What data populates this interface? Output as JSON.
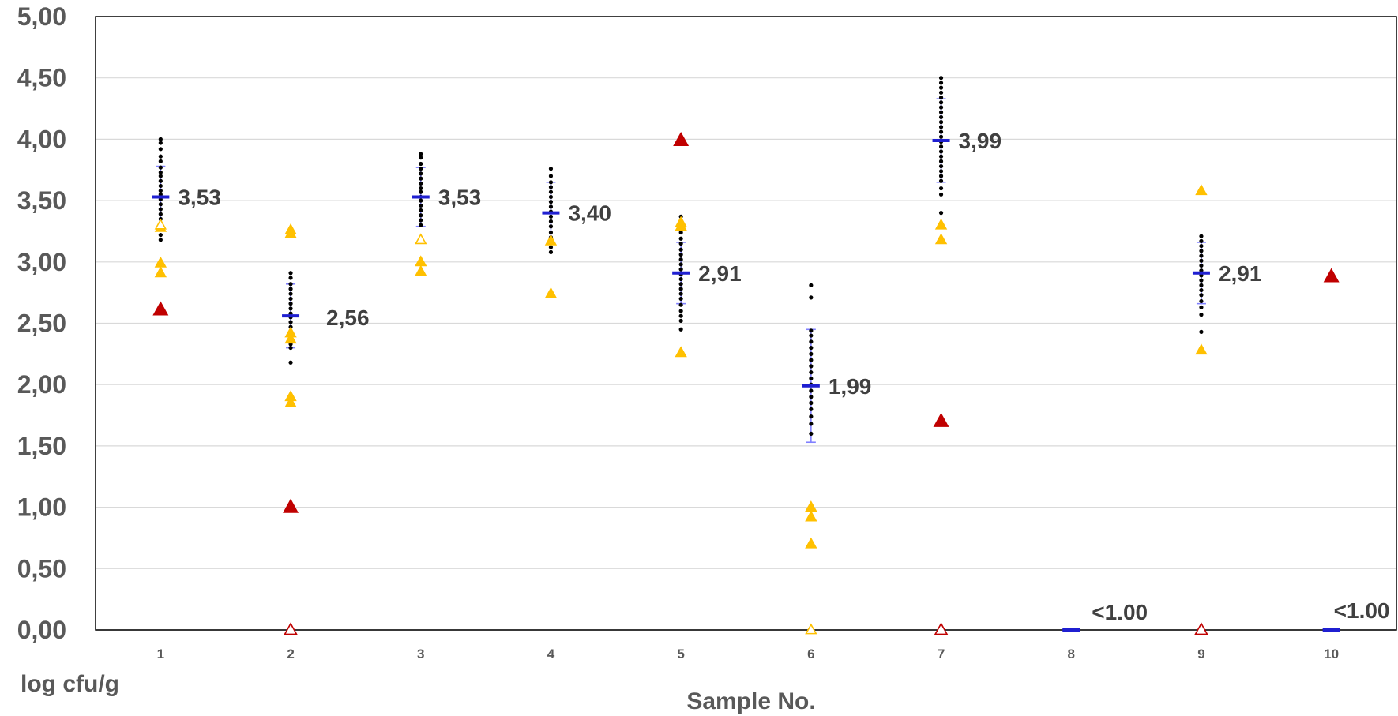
{
  "chart_data": {
    "type": "scatter",
    "title": "",
    "xlabel": "Sample No.",
    "ylabel": "log cfu/g",
    "categories": [
      "1",
      "2",
      "3",
      "4",
      "5",
      "6",
      "7",
      "8",
      "9",
      "10"
    ],
    "ylim": [
      0,
      5
    ],
    "yticks": [
      "0,00",
      "0,50",
      "1,00",
      "1,50",
      "2,00",
      "2,50",
      "3,00",
      "3,50",
      "4,00",
      "4,50",
      "5,00"
    ],
    "grid": true,
    "colors": {
      "results": "#000000",
      "mean": "#1f1fd1",
      "error_bar": "#8080ff",
      "yellow": "#ffc000",
      "red": "#c00000",
      "grid": "#d9d9d9"
    },
    "series": [
      {
        "marker": "dot",
        "points": [
          [
            1,
            4.0
          ],
          [
            1,
            3.97
          ],
          [
            1,
            3.92
          ],
          [
            1,
            3.86
          ],
          [
            1,
            3.82
          ],
          [
            1,
            3.77
          ],
          [
            1,
            3.73
          ],
          [
            1,
            3.7
          ],
          [
            1,
            3.66
          ],
          [
            1,
            3.62
          ],
          [
            1,
            3.58
          ],
          [
            1,
            3.55
          ],
          [
            1,
            3.51
          ],
          [
            1,
            3.47
          ],
          [
            1,
            3.43
          ],
          [
            1,
            3.39
          ],
          [
            1,
            3.35
          ],
          [
            1,
            3.31
          ],
          [
            1,
            3.27
          ],
          [
            1,
            3.22
          ],
          [
            1,
            3.18
          ],
          [
            2,
            2.91
          ],
          [
            2,
            2.87
          ],
          [
            2,
            2.82
          ],
          [
            2,
            2.78
          ],
          [
            2,
            2.74
          ],
          [
            2,
            2.7
          ],
          [
            2,
            2.66
          ],
          [
            2,
            2.62
          ],
          [
            2,
            2.58
          ],
          [
            2,
            2.55
          ],
          [
            2,
            2.51
          ],
          [
            2,
            2.47
          ],
          [
            2,
            2.43
          ],
          [
            2,
            2.38
          ],
          [
            2,
            2.33
          ],
          [
            2,
            2.3
          ],
          [
            2,
            2.18
          ],
          [
            3,
            3.88
          ],
          [
            3,
            3.85
          ],
          [
            3,
            3.8
          ],
          [
            3,
            3.76
          ],
          [
            3,
            3.72
          ],
          [
            3,
            3.68
          ],
          [
            3,
            3.64
          ],
          [
            3,
            3.6
          ],
          [
            3,
            3.57
          ],
          [
            3,
            3.53
          ],
          [
            3,
            3.5
          ],
          [
            3,
            3.46
          ],
          [
            3,
            3.42
          ],
          [
            3,
            3.38
          ],
          [
            3,
            3.34
          ],
          [
            3,
            3.3
          ],
          [
            4,
            3.76
          ],
          [
            4,
            3.7
          ],
          [
            4,
            3.65
          ],
          [
            4,
            3.61
          ],
          [
            4,
            3.57
          ],
          [
            4,
            3.53
          ],
          [
            4,
            3.49
          ],
          [
            4,
            3.45
          ],
          [
            4,
            3.41
          ],
          [
            4,
            3.37
          ],
          [
            4,
            3.33
          ],
          [
            4,
            3.29
          ],
          [
            4,
            3.24
          ],
          [
            4,
            3.2
          ],
          [
            4,
            3.16
          ],
          [
            4,
            3.12
          ],
          [
            4,
            3.08
          ],
          [
            5,
            3.37
          ],
          [
            5,
            3.33
          ],
          [
            5,
            3.28
          ],
          [
            5,
            3.24
          ],
          [
            5,
            3.19
          ],
          [
            5,
            3.15
          ],
          [
            5,
            3.1
          ],
          [
            5,
            3.06
          ],
          [
            5,
            3.02
          ],
          [
            5,
            2.98
          ],
          [
            5,
            2.94
          ],
          [
            5,
            2.9
          ],
          [
            5,
            2.86
          ],
          [
            5,
            2.82
          ],
          [
            5,
            2.78
          ],
          [
            5,
            2.74
          ],
          [
            5,
            2.7
          ],
          [
            5,
            2.65
          ],
          [
            5,
            2.6
          ],
          [
            5,
            2.56
          ],
          [
            5,
            2.52
          ],
          [
            5,
            2.45
          ],
          [
            6,
            2.81
          ],
          [
            6,
            2.71
          ],
          [
            6,
            2.44
          ],
          [
            6,
            2.4
          ],
          [
            6,
            2.35
          ],
          [
            6,
            2.3
          ],
          [
            6,
            2.25
          ],
          [
            6,
            2.2
          ],
          [
            6,
            2.15
          ],
          [
            6,
            2.1
          ],
          [
            6,
            2.05
          ],
          [
            6,
            2.0
          ],
          [
            6,
            1.95
          ],
          [
            6,
            1.9
          ],
          [
            6,
            1.85
          ],
          [
            6,
            1.8
          ],
          [
            6,
            1.74
          ],
          [
            6,
            1.68
          ],
          [
            6,
            1.6
          ],
          [
            7,
            4.5
          ],
          [
            7,
            4.46
          ],
          [
            7,
            4.42
          ],
          [
            7,
            4.38
          ],
          [
            7,
            4.34
          ],
          [
            7,
            4.3
          ],
          [
            7,
            4.26
          ],
          [
            7,
            4.22
          ],
          [
            7,
            4.18
          ],
          [
            7,
            4.14
          ],
          [
            7,
            4.1
          ],
          [
            7,
            4.06
          ],
          [
            7,
            4.02
          ],
          [
            7,
            3.98
          ],
          [
            7,
            3.94
          ],
          [
            7,
            3.9
          ],
          [
            7,
            3.86
          ],
          [
            7,
            3.82
          ],
          [
            7,
            3.78
          ],
          [
            7,
            3.74
          ],
          [
            7,
            3.7
          ],
          [
            7,
            3.66
          ],
          [
            7,
            3.6
          ],
          [
            7,
            3.55
          ],
          [
            7,
            3.4
          ],
          [
            9,
            3.21
          ],
          [
            9,
            3.17
          ],
          [
            9,
            3.13
          ],
          [
            9,
            3.09
          ],
          [
            9,
            3.05
          ],
          [
            9,
            3.01
          ],
          [
            9,
            2.97
          ],
          [
            9,
            2.93
          ],
          [
            9,
            2.89
          ],
          [
            9,
            2.85
          ],
          [
            9,
            2.81
          ],
          [
            9,
            2.77
          ],
          [
            9,
            2.73
          ],
          [
            9,
            2.68
          ],
          [
            9,
            2.63
          ],
          [
            9,
            2.57
          ],
          [
            9,
            2.43
          ]
        ]
      },
      {
        "marker": "triangle-filled-yellow",
        "points": [
          [
            1,
            3.28
          ],
          [
            1,
            2.99
          ],
          [
            1,
            2.91
          ],
          [
            2,
            3.26
          ],
          [
            2,
            3.23
          ],
          [
            2,
            2.42
          ],
          [
            2,
            2.37
          ],
          [
            2,
            1.9
          ],
          [
            2,
            1.85
          ],
          [
            3,
            3.0
          ],
          [
            3,
            2.92
          ],
          [
            4,
            3.17
          ],
          [
            4,
            2.74
          ],
          [
            5,
            3.32
          ],
          [
            5,
            3.29
          ],
          [
            5,
            2.26
          ],
          [
            6,
            1.0
          ],
          [
            6,
            0.92
          ],
          [
            6,
            0.7
          ],
          [
            7,
            3.3
          ],
          [
            7,
            3.18
          ],
          [
            9,
            3.58
          ],
          [
            9,
            2.28
          ]
        ]
      },
      {
        "marker": "triangle-open-yellow",
        "points": [
          [
            1,
            3.3
          ],
          [
            3,
            3.18
          ],
          [
            6,
            0.0
          ]
        ]
      },
      {
        "marker": "triangle-filled-red",
        "points": [
          [
            1,
            2.61
          ],
          [
            2,
            1.0
          ],
          [
            5,
            3.99
          ],
          [
            7,
            1.7
          ],
          [
            10,
            2.88
          ]
        ]
      },
      {
        "marker": "triangle-open-red",
        "points": [
          [
            2,
            0.0
          ],
          [
            7,
            0.0
          ],
          [
            9,
            0.0
          ]
        ]
      }
    ],
    "means": [
      {
        "x": 1,
        "y": 3.53,
        "err": 0.25,
        "label": "3,53"
      },
      {
        "x": 2,
        "y": 2.56,
        "err": 0.26,
        "label": "2,56"
      },
      {
        "x": 3,
        "y": 3.53,
        "err": 0.24,
        "label": "3,53"
      },
      {
        "x": 4,
        "y": 3.4,
        "err": 0.25,
        "label": "3,40"
      },
      {
        "x": 5,
        "y": 2.91,
        "err": 0.25,
        "label": "2,91"
      },
      {
        "x": 6,
        "y": 1.99,
        "err": 0.46,
        "label": "1,99"
      },
      {
        "x": 7,
        "y": 3.99,
        "err": 0.34,
        "label": "3,99"
      },
      {
        "x": 8,
        "y": 0.0,
        "err": 0,
        "label": "<1.00"
      },
      {
        "x": 9,
        "y": 2.91,
        "err": 0.25,
        "label": "2,91"
      },
      {
        "x": 10,
        "y": 0.0,
        "err": 0,
        "label": "<1.00"
      }
    ]
  }
}
